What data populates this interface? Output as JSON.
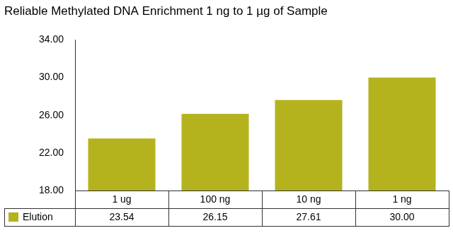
{
  "chart_data": {
    "type": "bar",
    "title": "Reliable Methylated DNA Enrichment 1 ng to 1 µg of Sample",
    "categories": [
      "1 ug",
      "100 ng",
      "10 ng",
      "1 ng"
    ],
    "series": [
      {
        "name": "Elution",
        "color": "#b4b31e",
        "values": [
          23.54,
          26.15,
          27.61,
          30.0
        ],
        "value_labels": [
          "23.54",
          "26.15",
          "27.61",
          "30.00"
        ]
      }
    ],
    "ylim": [
      18,
      34
    ],
    "yticks": [
      {
        "value": 18,
        "label": "18.00"
      },
      {
        "value": 22,
        "label": "22.00"
      },
      {
        "value": 26,
        "label": "26.00"
      },
      {
        "value": 30,
        "label": "30.00"
      },
      {
        "value": 34,
        "label": "34.00"
      }
    ],
    "grid": false,
    "data_labels": true
  }
}
